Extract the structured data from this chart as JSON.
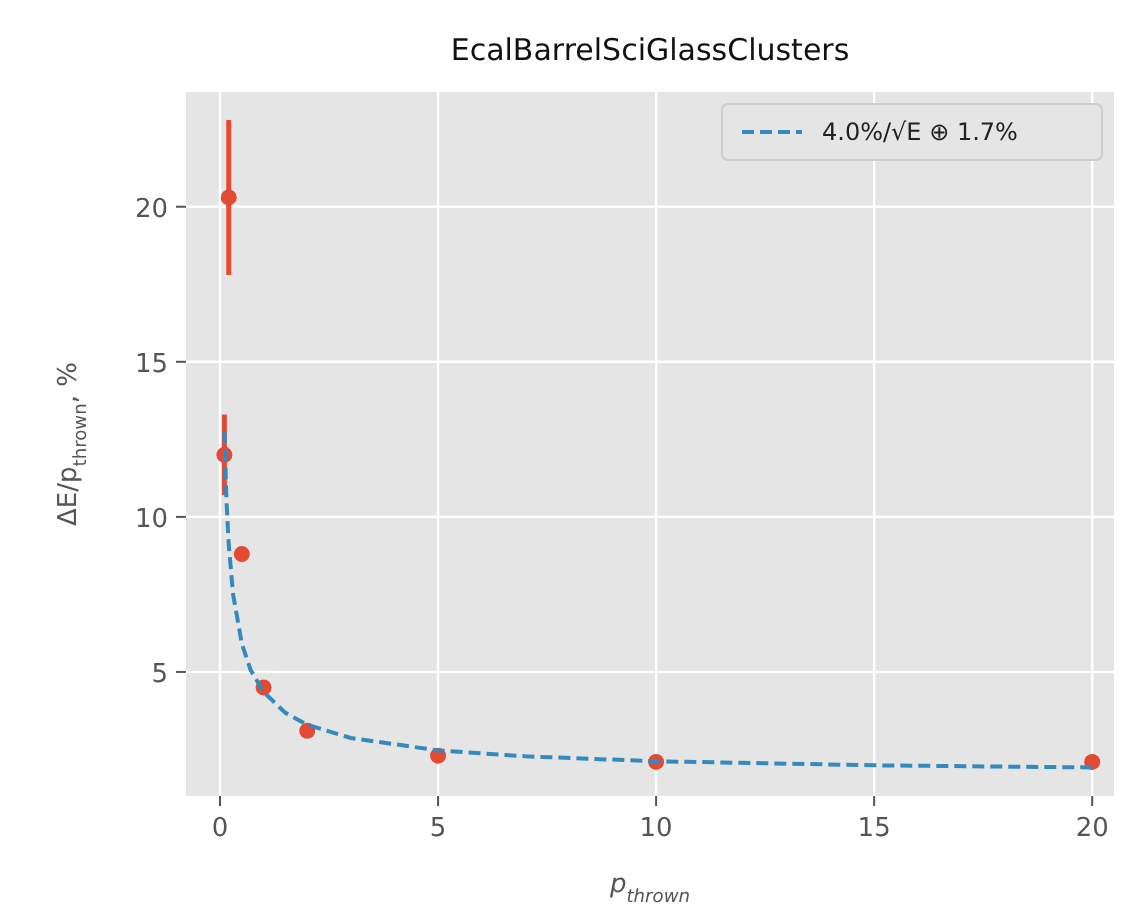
{
  "chart_data": {
    "type": "scatter",
    "title": "EcalBarrelSciGlassClusters",
    "xlabel": "p$_{thrown}$",
    "ylabel": "ΔE/p$_{thrown}$, %",
    "series": [
      {
        "color": "#e24a33",
        "x": [
          0.1,
          0.2,
          0.5,
          1,
          2,
          5,
          10,
          20
        ],
        "values": [
          12,
          20.3,
          8.8,
          4.5,
          3.1,
          2.3,
          2.1,
          2.1
        ],
        "errors": [
          1.3,
          2.5,
          null,
          null,
          null,
          null,
          null,
          null
        ]
      },
      {
        "type": "line",
        "name": "4.0%/√E ⊕ 1.7%",
        "color": "#348abd",
        "line_style": "dashed",
        "marker": "none",
        "x": [
          0.1,
          0.15,
          0.2,
          0.3,
          0.5,
          0.7,
          1,
          1.5,
          2,
          3,
          5,
          7,
          10,
          15,
          20
        ],
        "values": [
          12.76,
          10.47,
          9.1,
          7.5,
          5.91,
          5.07,
          4.35,
          3.68,
          3.3,
          2.87,
          2.47,
          2.28,
          2.12,
          1.99,
          1.92
        ]
      }
    ],
    "marker": "circle",
    "xlim": [
      -0.78,
      20.5
    ],
    "ylim": [
      1,
      23.7
    ],
    "xticks": [
      0,
      5,
      10,
      15,
      20
    ],
    "yticks": [
      5,
      10,
      15,
      20
    ],
    "grid": true,
    "legend": "top right"
  }
}
